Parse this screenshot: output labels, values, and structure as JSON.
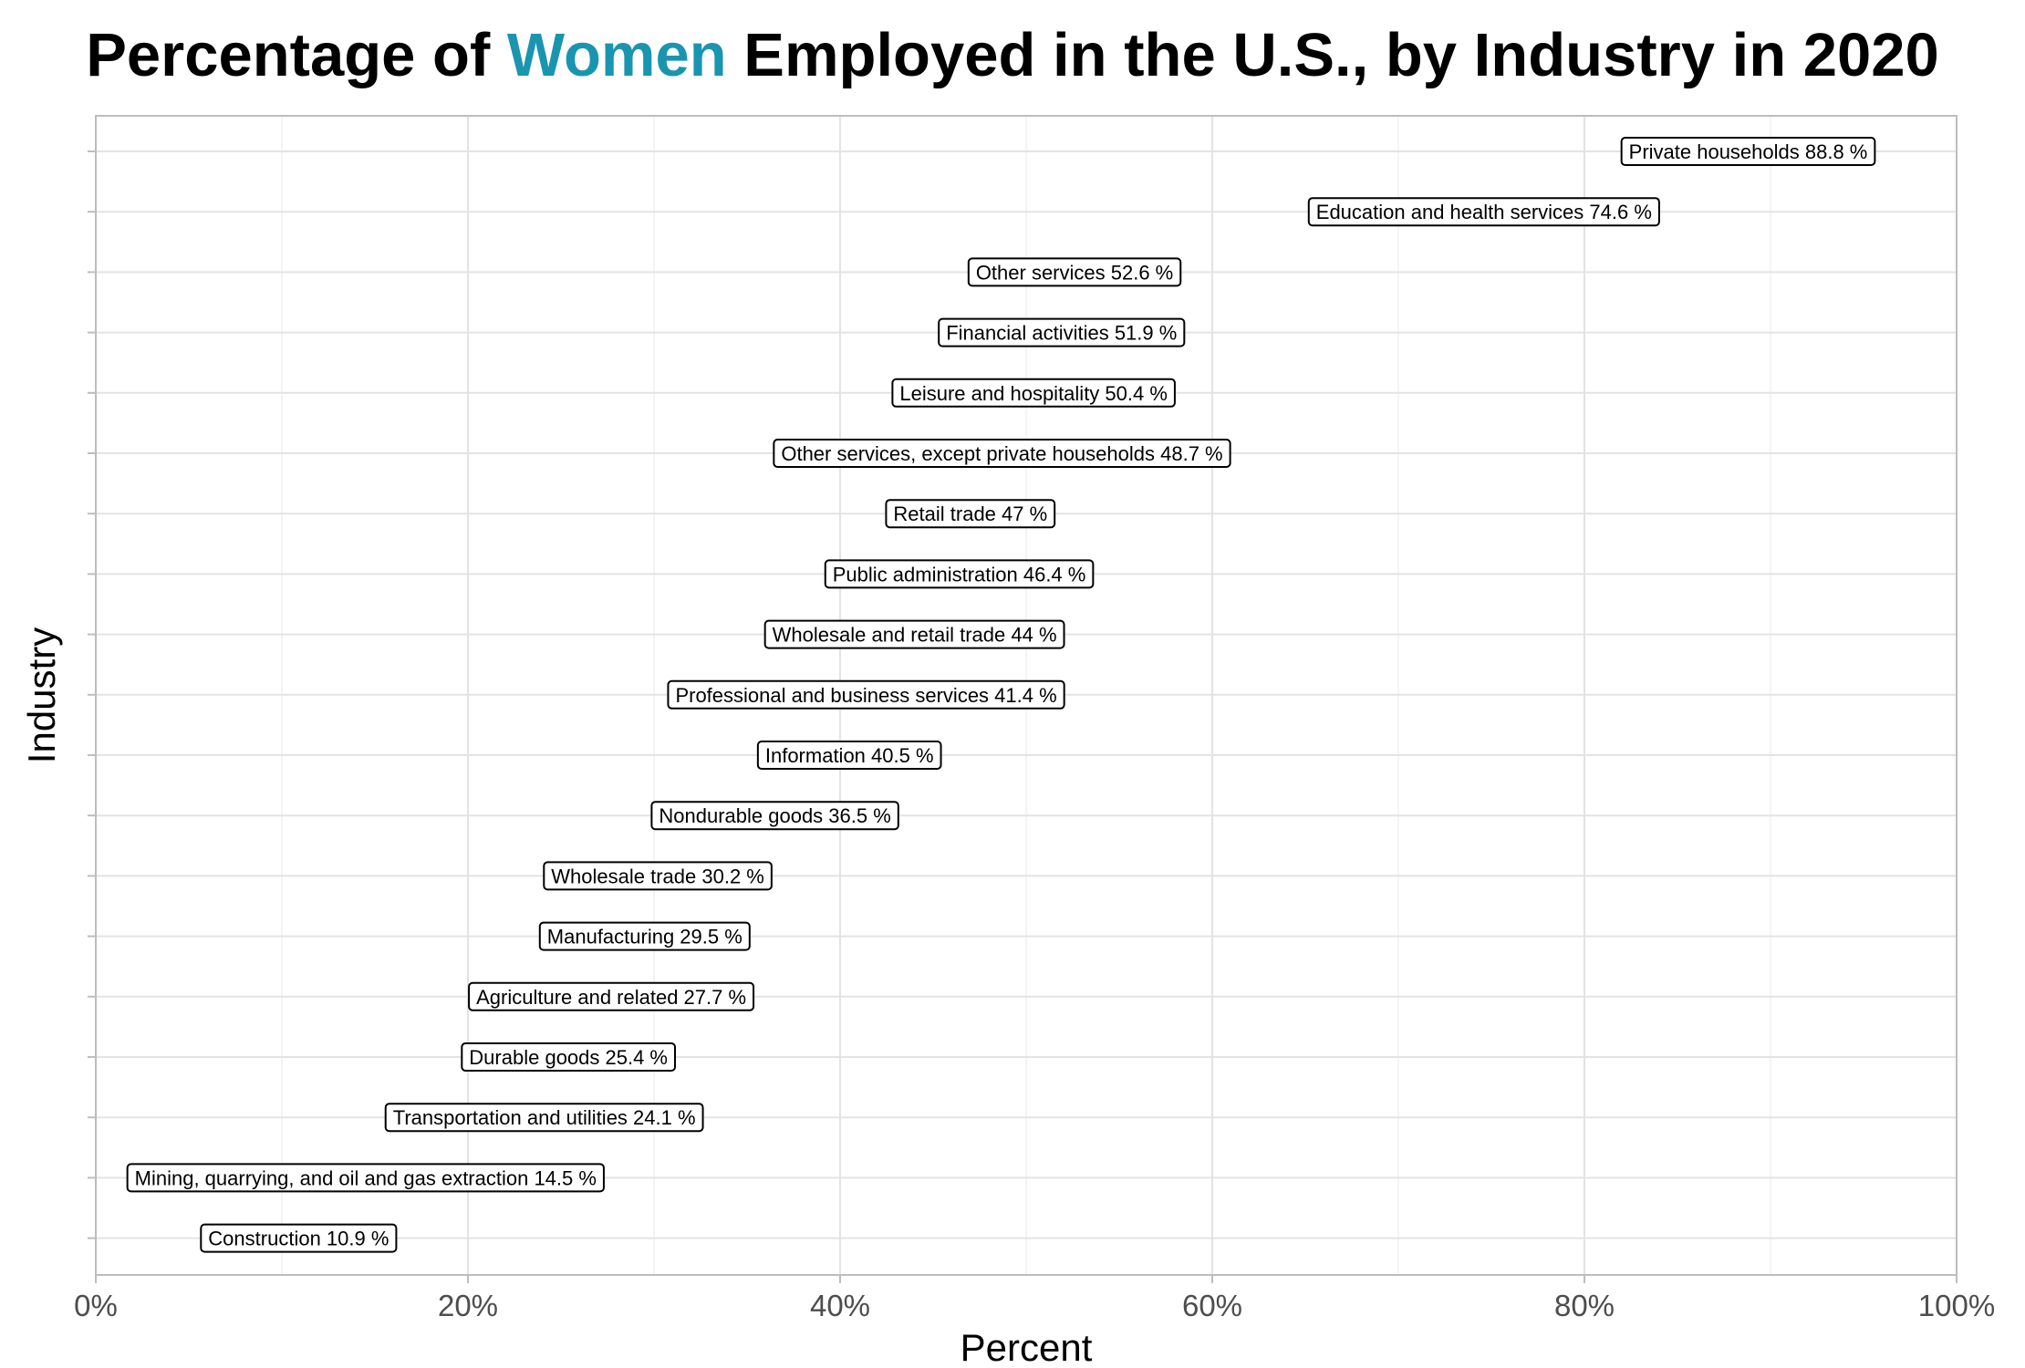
{
  "title": {
    "before": "Percentage of ",
    "highlight": "Women",
    "after": " Employed in the U.S., by Industry in 2020",
    "highlight_color": "#1a95b0"
  },
  "chart_data": {
    "type": "scatter",
    "xlabel": "Percent",
    "ylabel": "Industry",
    "xlim": [
      0,
      100
    ],
    "x_ticks": [
      0,
      20,
      40,
      60,
      80,
      100
    ],
    "x_tick_labels": [
      "0%",
      "20%",
      "40%",
      "60%",
      "80%",
      "100%"
    ],
    "x_minor_ticks": [
      10,
      30,
      50,
      70,
      90
    ],
    "grid": true,
    "legend": "none",
    "label_suffix": " %",
    "points": [
      {
        "industry": "Private households",
        "label_value": "88.8",
        "value": 88.8
      },
      {
        "industry": "Education and health services",
        "label_value": "74.6",
        "value": 74.6
      },
      {
        "industry": "Other services",
        "label_value": "52.6",
        "value": 52.6
      },
      {
        "industry": "Financial activities",
        "label_value": "51.9",
        "value": 51.9
      },
      {
        "industry": "Leisure and hospitality",
        "label_value": "50.4",
        "value": 50.4
      },
      {
        "industry": "Other services, except private households",
        "label_value": "48.7",
        "value": 48.7
      },
      {
        "industry": "Retail trade",
        "label_value": "47",
        "value": 47
      },
      {
        "industry": "Public administration",
        "label_value": "46.4",
        "value": 46.4
      },
      {
        "industry": "Wholesale and retail trade",
        "label_value": "44",
        "value": 44
      },
      {
        "industry": "Professional and business services",
        "label_value": "41.4",
        "value": 41.4
      },
      {
        "industry": "Information",
        "label_value": "40.5",
        "value": 40.5
      },
      {
        "industry": "Nondurable goods",
        "label_value": "36.5",
        "value": 36.5
      },
      {
        "industry": "Wholesale trade",
        "label_value": "30.2",
        "value": 30.2
      },
      {
        "industry": "Manufacturing",
        "label_value": "29.5",
        "value": 29.5
      },
      {
        "industry": "Agriculture and related",
        "label_value": "27.7",
        "value": 27.7
      },
      {
        "industry": "Durable goods",
        "label_value": "25.4",
        "value": 25.4
      },
      {
        "industry": "Transportation and utilities",
        "label_value": "24.1",
        "value": 24.1
      },
      {
        "industry": "Mining, quarrying, and oil and gas extraction",
        "label_value": "14.5",
        "value": 14.5
      },
      {
        "industry": "Construction",
        "label_value": "10.9",
        "value": 10.9
      }
    ]
  }
}
